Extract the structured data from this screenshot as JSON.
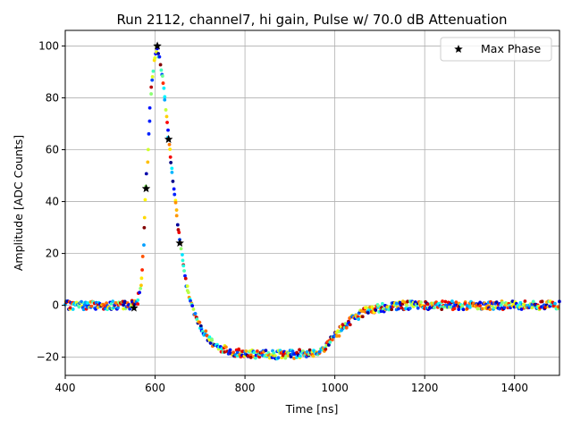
{
  "chart_data": {
    "type": "scatter",
    "title": "Run 2112, channel7, hi gain, Pulse w/ 70.0 dB Attenuation",
    "xlabel": "Time [ns]",
    "ylabel": "Amplitude [ADC Counts]",
    "xlim": [
      400,
      1500
    ],
    "ylim": [
      -27,
      106
    ],
    "xticks": [
      400,
      600,
      800,
      1000,
      1200,
      1400
    ],
    "yticks": [
      -20,
      0,
      20,
      40,
      60,
      80,
      100
    ],
    "grid": true,
    "legend_position": "upper right",
    "colormap": "jet",
    "waveform_series": {
      "marker": "circle",
      "profile": [
        {
          "x": 400,
          "y": 0
        },
        {
          "x": 540,
          "y": 0
        },
        {
          "x": 560,
          "y": 1
        },
        {
          "x": 570,
          "y": 10
        },
        {
          "x": 580,
          "y": 45
        },
        {
          "x": 590,
          "y": 80
        },
        {
          "x": 600,
          "y": 97
        },
        {
          "x": 605,
          "y": 100
        },
        {
          "x": 612,
          "y": 93
        },
        {
          "x": 620,
          "y": 82
        },
        {
          "x": 630,
          "y": 64
        },
        {
          "x": 640,
          "y": 48
        },
        {
          "x": 655,
          "y": 25
        },
        {
          "x": 670,
          "y": 8
        },
        {
          "x": 685,
          "y": -2
        },
        {
          "x": 700,
          "y": -8
        },
        {
          "x": 720,
          "y": -13
        },
        {
          "x": 740,
          "y": -16
        },
        {
          "x": 770,
          "y": -18
        },
        {
          "x": 830,
          "y": -19
        },
        {
          "x": 900,
          "y": -19
        },
        {
          "x": 960,
          "y": -18
        },
        {
          "x": 985,
          "y": -15
        },
        {
          "x": 1010,
          "y": -10
        },
        {
          "x": 1040,
          "y": -5
        },
        {
          "x": 1070,
          "y": -2
        },
        {
          "x": 1100,
          "y": -1
        },
        {
          "x": 1150,
          "y": 0
        },
        {
          "x": 1500,
          "y": 0
        }
      ],
      "noise_amplitude": 1.6
    },
    "series": [
      {
        "name": "Max Phase",
        "marker": "star",
        "color": "#000000",
        "points": [
          {
            "x": 553,
            "y": -1
          },
          {
            "x": 580,
            "y": 45
          },
          {
            "x": 605,
            "y": 100
          },
          {
            "x": 630,
            "y": 64
          },
          {
            "x": 655,
            "y": 24
          }
        ]
      }
    ]
  }
}
